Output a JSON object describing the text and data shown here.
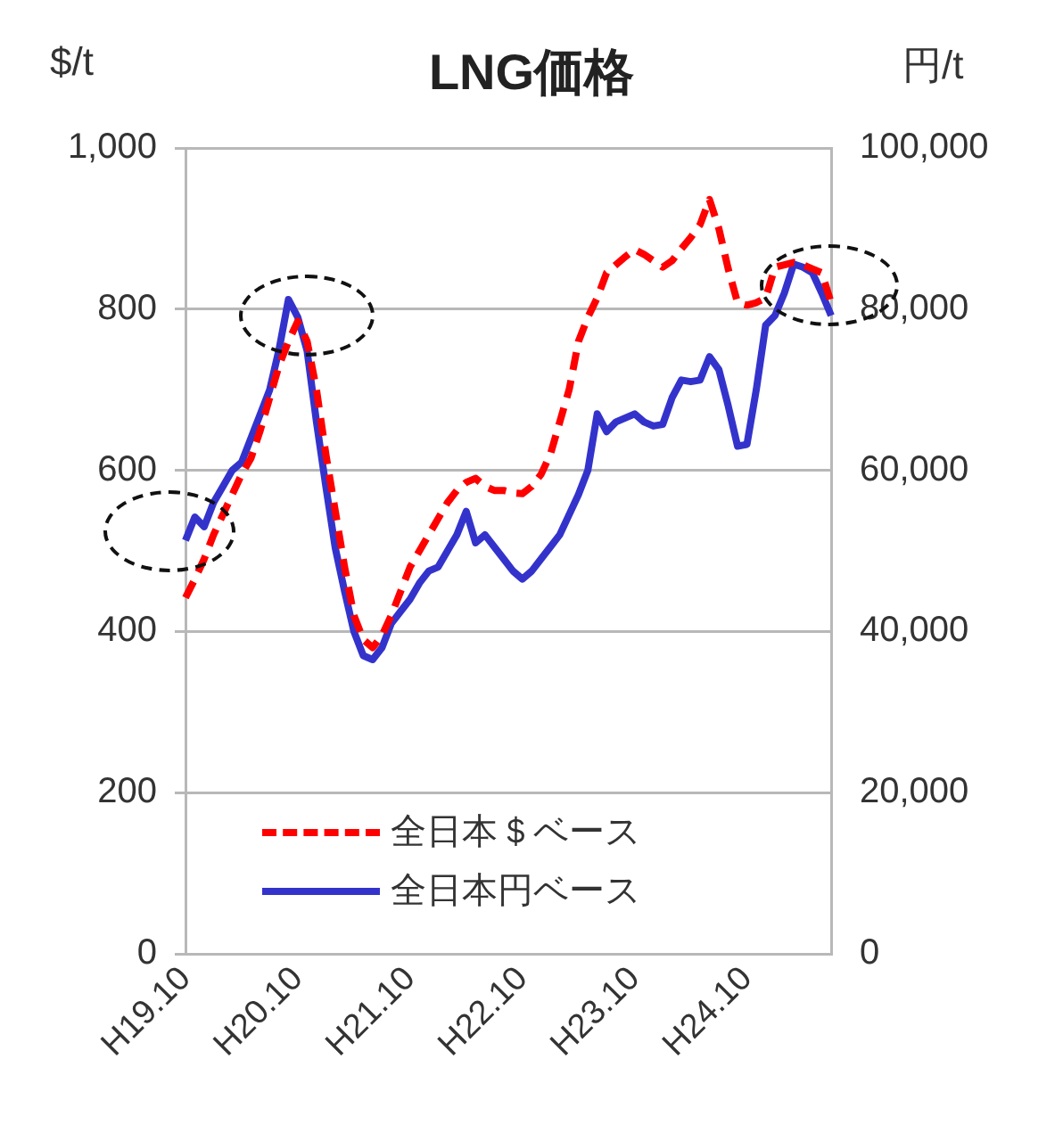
{
  "chart_data": {
    "type": "line",
    "title": "LNG価格",
    "ylabel": "$/t",
    "y2label": "円/t",
    "categories": [
      "H19.10",
      null,
      null,
      null,
      null,
      null,
      null,
      null,
      null,
      null,
      null,
      null,
      "H20.10",
      null,
      null,
      null,
      null,
      null,
      null,
      null,
      null,
      null,
      null,
      null,
      "H21.10",
      null,
      null,
      null,
      null,
      null,
      null,
      null,
      null,
      null,
      null,
      null,
      "H22.10",
      null,
      null,
      null,
      null,
      null,
      null,
      null,
      null,
      null,
      null,
      null,
      "H23.10",
      null,
      null,
      null,
      null,
      null,
      null,
      null,
      null,
      null,
      null,
      null,
      "H24.10",
      null,
      null,
      null,
      null,
      null,
      null,
      null,
      null,
      null
    ],
    "series": [
      {
        "name": "全日本＄ベース",
        "color": "#ff0000",
        "line_style": "dashed",
        "values": [
          442,
          465,
          490,
          520,
          545,
          570,
          595,
          615,
          650,
          690,
          730,
          760,
          785,
          760,
          700,
          620,
          550,
          480,
          420,
          390,
          380,
          395,
          420,
          450,
          480,
          500,
          520,
          540,
          560,
          575,
          585,
          590,
          580,
          575,
          575,
          572,
          571,
          580,
          595,
          620,
          660,
          700,
          760,
          790,
          814,
          845,
          855,
          865,
          874,
          868,
          860,
          852,
          860,
          875,
          889,
          905,
          936,
          900,
          850,
          808,
          805,
          808,
          814,
          852,
          855,
          858,
          855,
          850,
          845,
          808
        ]
      },
      {
        "name": "全日本円ベース",
        "color": "#3333cc",
        "line_style": "solid",
        "axis": "y2",
        "values": [
          51300,
          54200,
          53000,
          56000,
          58000,
          60000,
          61000,
          64000,
          67000,
          70000,
          75000,
          81200,
          79000,
          74800,
          66000,
          58000,
          50400,
          45000,
          40000,
          37000,
          36500,
          38000,
          41000,
          42500,
          44000,
          46000,
          47500,
          48000,
          50000,
          52000,
          54900,
          51000,
          52000,
          50500,
          49000,
          47500,
          46500,
          47500,
          49000,
          50500,
          52000,
          54500,
          57000,
          60000,
          67000,
          64800,
          66000,
          66500,
          67000,
          66000,
          65500,
          65700,
          69000,
          71200,
          71000,
          71200,
          74100,
          72500,
          68000,
          63000,
          63200,
          70000,
          78000,
          79200,
          82000,
          85600,
          85200,
          84500,
          82000,
          79200
        ]
      }
    ],
    "ylim": [
      0,
      1000
    ],
    "yticks": [
      0,
      200,
      400,
      600,
      800,
      {
        "value": 1000,
        "label": "1,000"
      }
    ],
    "y2lim": [
      0,
      100000
    ],
    "y2ticks": [
      0,
      {
        "value": 20000,
        "label": "20,000"
      },
      {
        "value": 40000,
        "label": "40,000"
      },
      {
        "value": 60000,
        "label": "60,000"
      },
      {
        "value": 80000,
        "label": "80,000"
      },
      {
        "value": 100000,
        "label": "100,000"
      }
    ],
    "grid": "y",
    "legend": "bottom",
    "marker": "none"
  }
}
